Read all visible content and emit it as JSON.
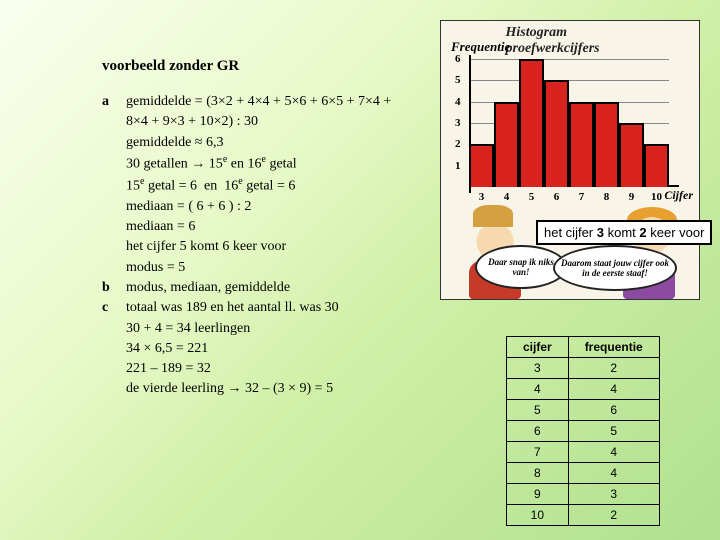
{
  "title": "voorbeeld zonder GR",
  "parts": {
    "a": {
      "label": "a",
      "lines": [
        "gemiddelde = (3×2 + 4×4 + 5×6 + 6×5 + 7×4 +",
        "8×4 + 9×3 + 10×2) : 30",
        "gemiddelde ≈ 6,3",
        "30 getallen → 15e en 16e getal",
        "15e getal = 6  en  16e getal = 6",
        "mediaan = ( 6 + 6 ) : 2",
        "mediaan = 6",
        "het cijfer 5 komt 6 keer voor",
        "modus = 5"
      ]
    },
    "b": {
      "label": "b",
      "lines": [
        "modus, mediaan, gemiddelde"
      ]
    },
    "c": {
      "label": "c",
      "lines": [
        "totaal was 189 en het aantal ll. was 30",
        "30 + 4 = 34 leerlingen",
        "34 × 6,5 = 221",
        "221 – 189 = 32",
        "de vierde leerling → 32 – (3 × 9) = 5"
      ]
    }
  },
  "illustration": {
    "title": "Histogram proefwerkcijfers",
    "ylabel": "Frequentie",
    "xlabel": "Cijfer",
    "y_max": 6,
    "y_ticks": [
      1,
      2,
      3,
      4,
      5,
      6
    ],
    "x_ticks": [
      3,
      4,
      5,
      6,
      7,
      8,
      9,
      10
    ],
    "bar_data": [
      {
        "x": 3,
        "y": 2
      },
      {
        "x": 4,
        "y": 4
      },
      {
        "x": 5,
        "y": 6
      },
      {
        "x": 6,
        "y": 5
      },
      {
        "x": 7,
        "y": 4
      },
      {
        "x": 8,
        "y": 4
      },
      {
        "x": 9,
        "y": 3
      },
      {
        "x": 10,
        "y": 2
      }
    ],
    "bar_color": "#d8221e",
    "grid_color": "#888888",
    "bg_color": "#f8f5e8",
    "bubble1": "Daar snap ik niks van!",
    "bubble2": "Daarom staat jouw cijfer ook in de eerste staaf!"
  },
  "callout": {
    "prefix": "het cijfer ",
    "num1": "3",
    "mid": " komt ",
    "num2": "2",
    "suffix": " keer voor"
  },
  "table": {
    "headers": [
      "cijfer",
      "frequentie"
    ],
    "rows": [
      [
        "3",
        "2"
      ],
      [
        "4",
        "4"
      ],
      [
        "5",
        "6"
      ],
      [
        "6",
        "5"
      ],
      [
        "7",
        "4"
      ],
      [
        "8",
        "4"
      ],
      [
        "9",
        "3"
      ],
      [
        "10",
        "2"
      ]
    ]
  }
}
